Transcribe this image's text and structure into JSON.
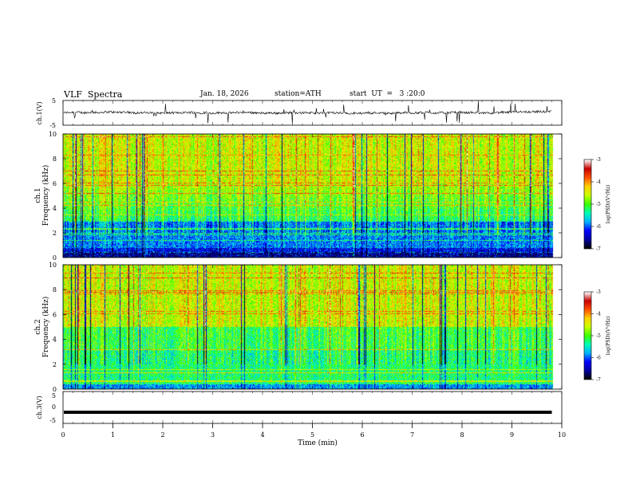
{
  "header": {
    "title": "VLF  Spectra",
    "date": "Jan. 18, 2026",
    "station": "station=ATH",
    "start_ut": "start  UT  =   3 :20:0"
  },
  "chart_data": [
    {
      "type": "line",
      "panel": "ch1-waveform",
      "ylabel": "ch.1(V)",
      "ylim": [
        -5,
        5
      ],
      "y_ticks": [
        "5",
        "-5"
      ],
      "description_values": "noisy waveform with baseline near 0 V and frequent impulsive spikes",
      "xlim": [
        0,
        10
      ]
    },
    {
      "type": "heatmap",
      "panel": "ch1-spectrogram",
      "ylabel": "ch.1\nFrequency  (kHz)",
      "ylabel_lines": [
        "ch.1",
        "Frequency  (kHz)"
      ],
      "ylim": [
        0,
        10
      ],
      "y_ticks": [
        "0",
        "2",
        "4",
        "6",
        "8",
        "10"
      ],
      "xlim": [
        0,
        10
      ],
      "colorbar": {
        "label": "log(PSD)(V²/Hz)",
        "range": [
          -7,
          -3
        ],
        "ticks": [
          "-3",
          "-4",
          "-5",
          "-6",
          "-7"
        ]
      }
    },
    {
      "type": "heatmap",
      "panel": "ch2-spectrogram",
      "ylabel": "ch.2\nFrequency  (kHz)",
      "ylabel_lines": [
        "ch.2",
        "Frequency  (kHz)"
      ],
      "ylim": [
        0,
        10
      ],
      "y_ticks": [
        "0",
        "2",
        "4",
        "6",
        "8",
        "10"
      ],
      "xlim": [
        0,
        10
      ],
      "colorbar": {
        "label": "log(PSD)(V²/Hz)",
        "range": [
          -7,
          -3
        ],
        "ticks": [
          "-3",
          "-4",
          "-5",
          "-6",
          "-7"
        ]
      }
    },
    {
      "type": "line",
      "panel": "ch3-waveform",
      "ylabel": "ch.3(V)",
      "ylim": [
        -5,
        5
      ],
      "y_ticks": [
        "5",
        "0",
        "-5"
      ],
      "constant_value": -1.5,
      "xlim": [
        0,
        10
      ]
    }
  ],
  "xaxis": {
    "label": "Time  (min)",
    "range": [
      0,
      10
    ],
    "data_end": 9.8,
    "ticks": [
      "0",
      "1",
      "2",
      "3",
      "4",
      "5",
      "6",
      "7",
      "8",
      "9",
      "10"
    ]
  },
  "colors": {
    "colormap": [
      "#000000",
      "#0000a0",
      "#0000ff",
      "#00b4ff",
      "#00ffb4",
      "#3cff00",
      "#c8ff00",
      "#ffd200",
      "#ff5000",
      "#c80000",
      "#ffffff"
    ]
  }
}
